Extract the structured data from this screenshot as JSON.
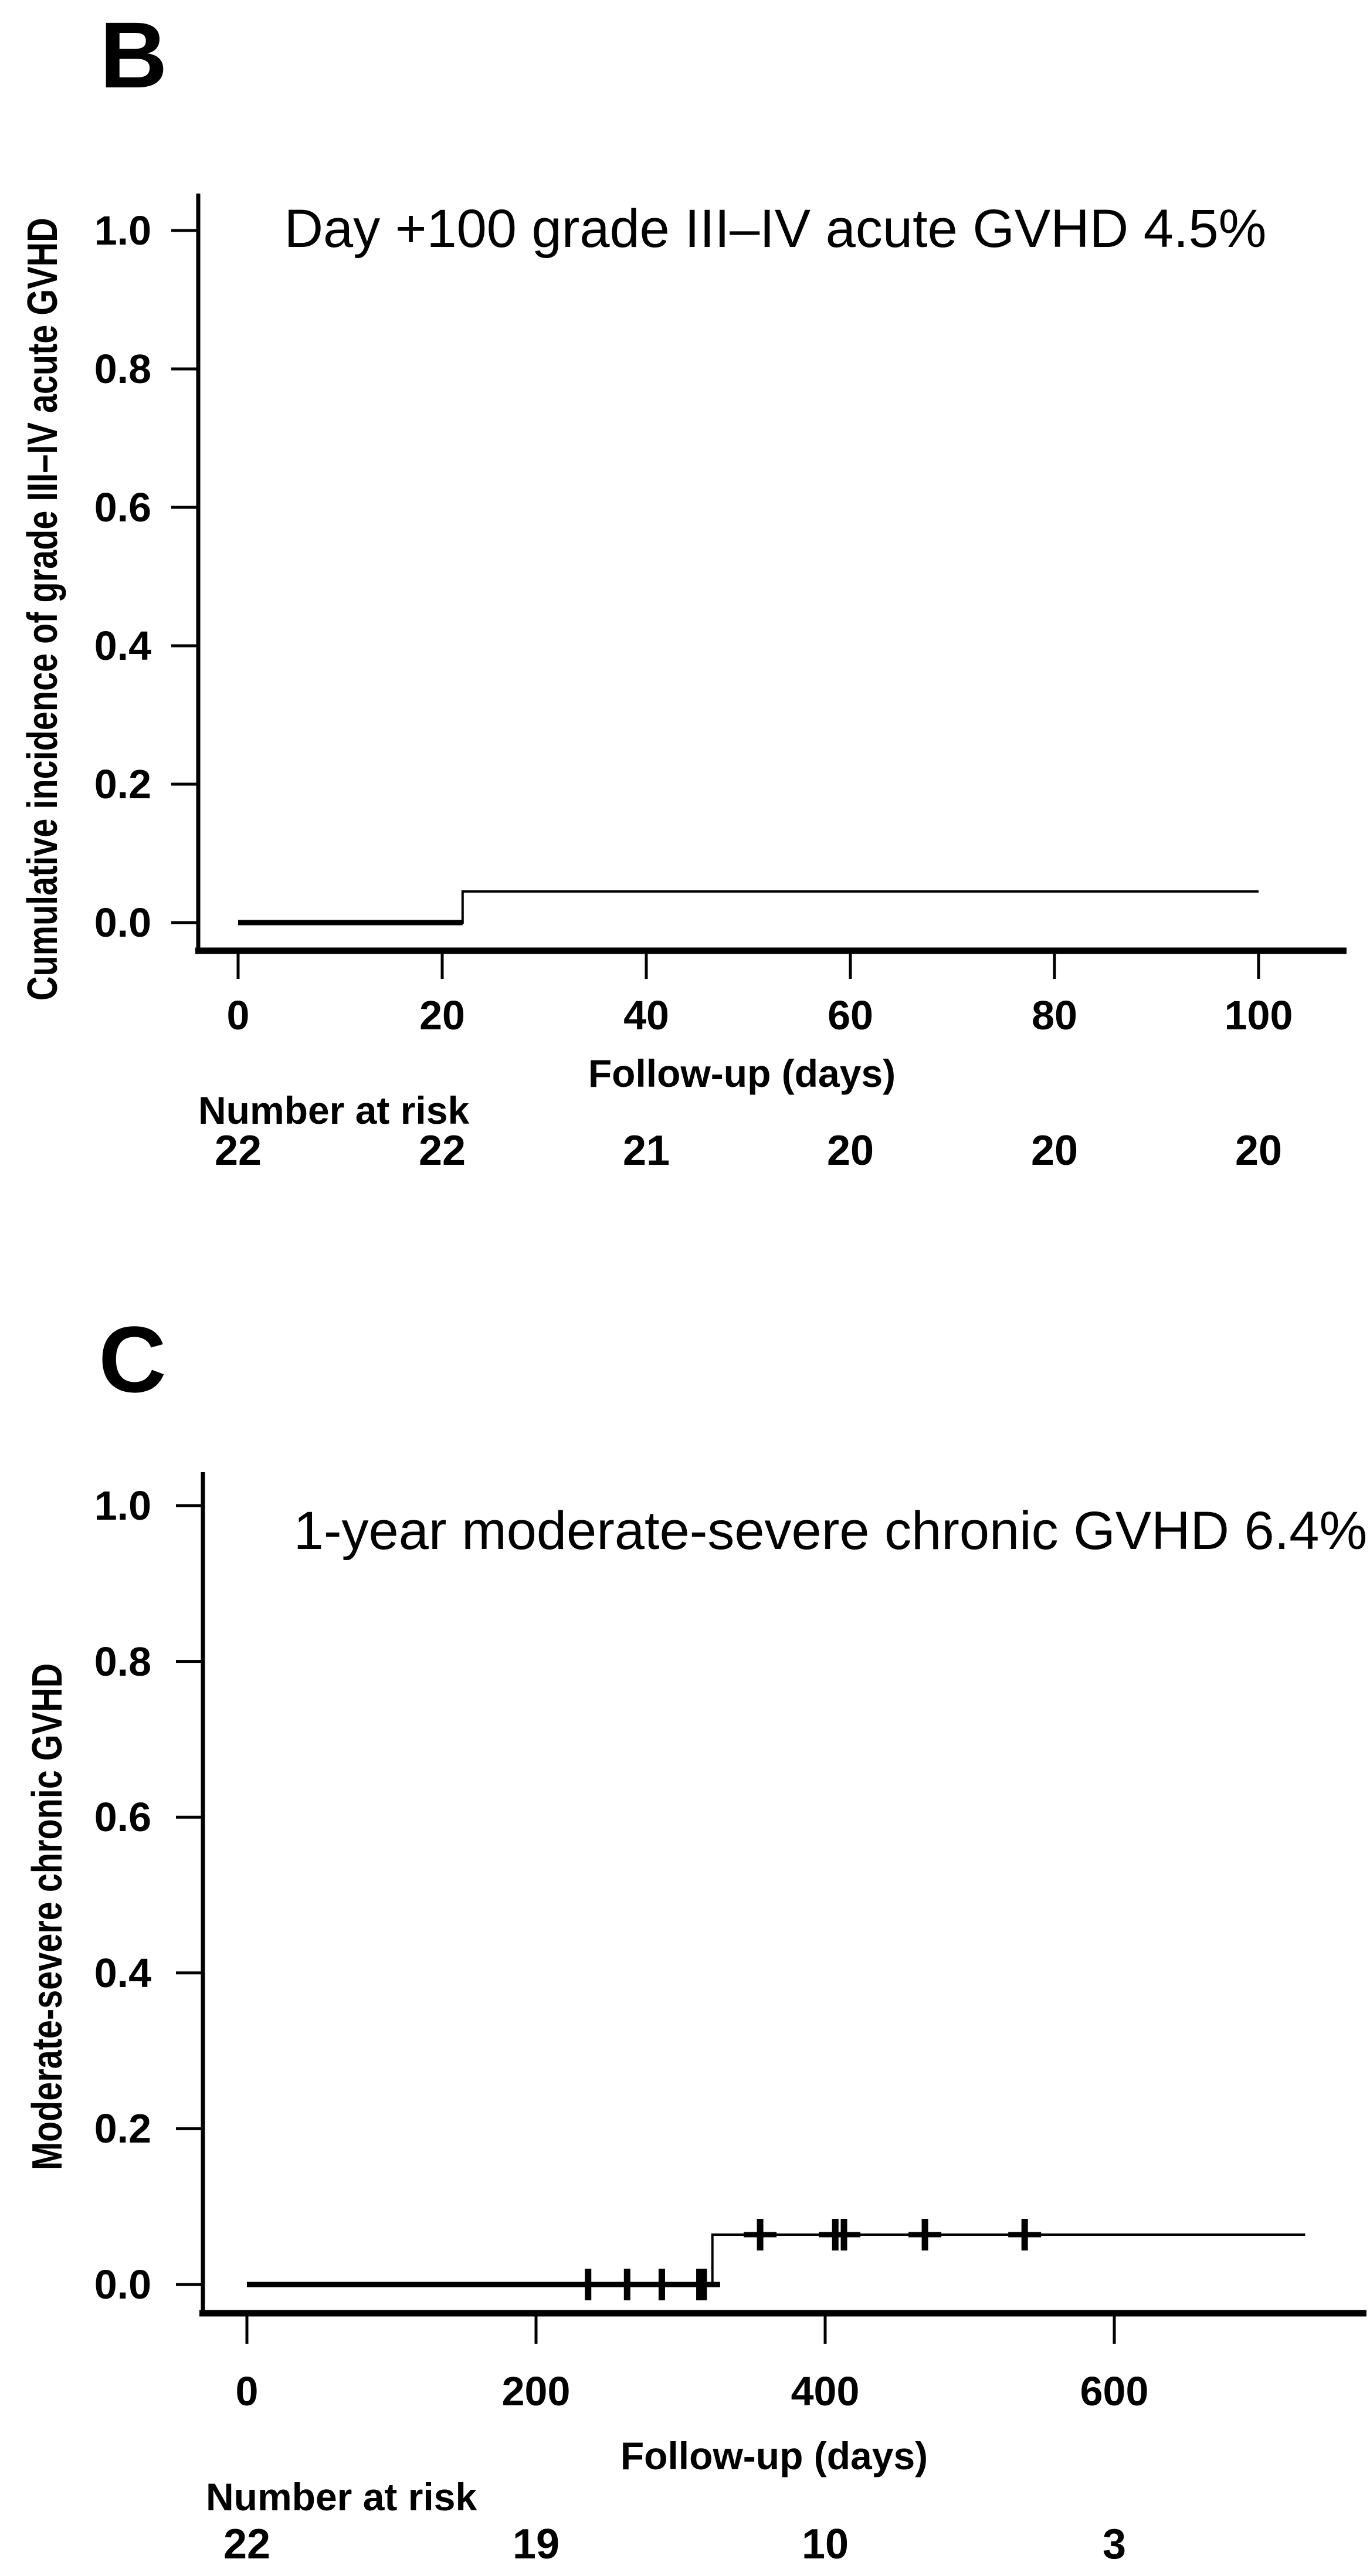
{
  "figure": {
    "background": "#ffffff",
    "ink": "#000000",
    "description_panels": [
      "B",
      "C"
    ]
  },
  "panels": [
    {
      "letter": "B",
      "title": "Day +100 grade III–IV acute GVHD 4.5%",
      "y_axis": {
        "label": "Cumulative incidence of grade III–IV acute GVHD",
        "tick_labels": [
          "1.0",
          "0.8",
          "0.6",
          "0.4",
          "0.2",
          "0.0"
        ]
      },
      "x_axis": {
        "label": "Follow-up (days)",
        "tick_labels": [
          "0",
          "20",
          "40",
          "60",
          "80",
          "100"
        ]
      },
      "number_at_risk": {
        "label": "Number at risk",
        "times": [
          0,
          20,
          40,
          60,
          80,
          100
        ],
        "counts": [
          "22",
          "22",
          "21",
          "20",
          "20",
          "20"
        ]
      },
      "chart_data": {
        "type": "line",
        "step": true,
        "title": "Day +100 grade III–IV acute GVHD 4.5%",
        "xlabel": "Follow-up (days)",
        "ylabel": "Cumulative incidence of grade III–IV acute GVHD",
        "xlim": [
          0,
          105
        ],
        "ylim": [
          0,
          1.05
        ],
        "xticks": [
          0,
          20,
          40,
          60,
          80,
          100
        ],
        "yticks": [
          1.0,
          0.8,
          0.6,
          0.4,
          0.2,
          0.0
        ],
        "grid": false,
        "legend": "none",
        "estimate": 0.045,
        "series": [
          {
            "name": "Cumulative incidence of grade III-IV acute GVHD",
            "points": [
              [
                0,
                0
              ],
              [
                22,
                0
              ],
              [
                22,
                0.045
              ],
              [
                100,
                0.045
              ]
            ]
          }
        ],
        "censor_marks": []
      }
    },
    {
      "letter": "C",
      "title": "1-year moderate-severe chronic GVHD 6.4%",
      "y_axis": {
        "label": "Moderate-severe chronic GVHD",
        "tick_labels": [
          "1.0",
          "0.8",
          "0.6",
          "0.4",
          "0.2",
          "0.0"
        ]
      },
      "x_axis": {
        "label": "Follow-up (days)",
        "tick_labels": [
          "0",
          "200",
          "400",
          "600"
        ]
      },
      "number_at_risk": {
        "label": "Number at risk",
        "times": [
          0,
          200,
          400,
          600
        ],
        "counts": [
          "22",
          "19",
          "10",
          "3"
        ]
      },
      "chart_data": {
        "type": "line",
        "step": true,
        "title": "1-year moderate-severe chronic GVHD 6.4%",
        "xlabel": "Follow-up (days)",
        "ylabel": "Moderate-severe chronic GVHD",
        "xlim": [
          0,
          740
        ],
        "ylim": [
          0,
          1.05
        ],
        "xticks": [
          0,
          200,
          400,
          600
        ],
        "yticks": [
          1.0,
          0.8,
          0.6,
          0.4,
          0.2,
          0.0
        ],
        "grid": false,
        "legend": "none",
        "estimate": 0.064,
        "series": [
          {
            "name": "Moderate-severe chronic GVHD",
            "points": [
              [
                0,
                0
              ],
              [
                322,
                0
              ],
              [
                322,
                0.064
              ],
              [
                732,
                0.064
              ]
            ]
          }
        ],
        "censor_marks": [
          {
            "x": 236,
            "y": 0
          },
          {
            "x": 263,
            "y": 0
          },
          {
            "x": 287,
            "y": 0
          },
          {
            "x": 313,
            "y": 0
          },
          {
            "x": 316,
            "y": 0
          },
          {
            "x": 355,
            "y": 0.064
          },
          {
            "x": 407,
            "y": 0.064
          },
          {
            "x": 413,
            "y": 0.064
          },
          {
            "x": 469,
            "y": 0.064
          },
          {
            "x": 538,
            "y": 0.064
          }
        ]
      }
    }
  ]
}
